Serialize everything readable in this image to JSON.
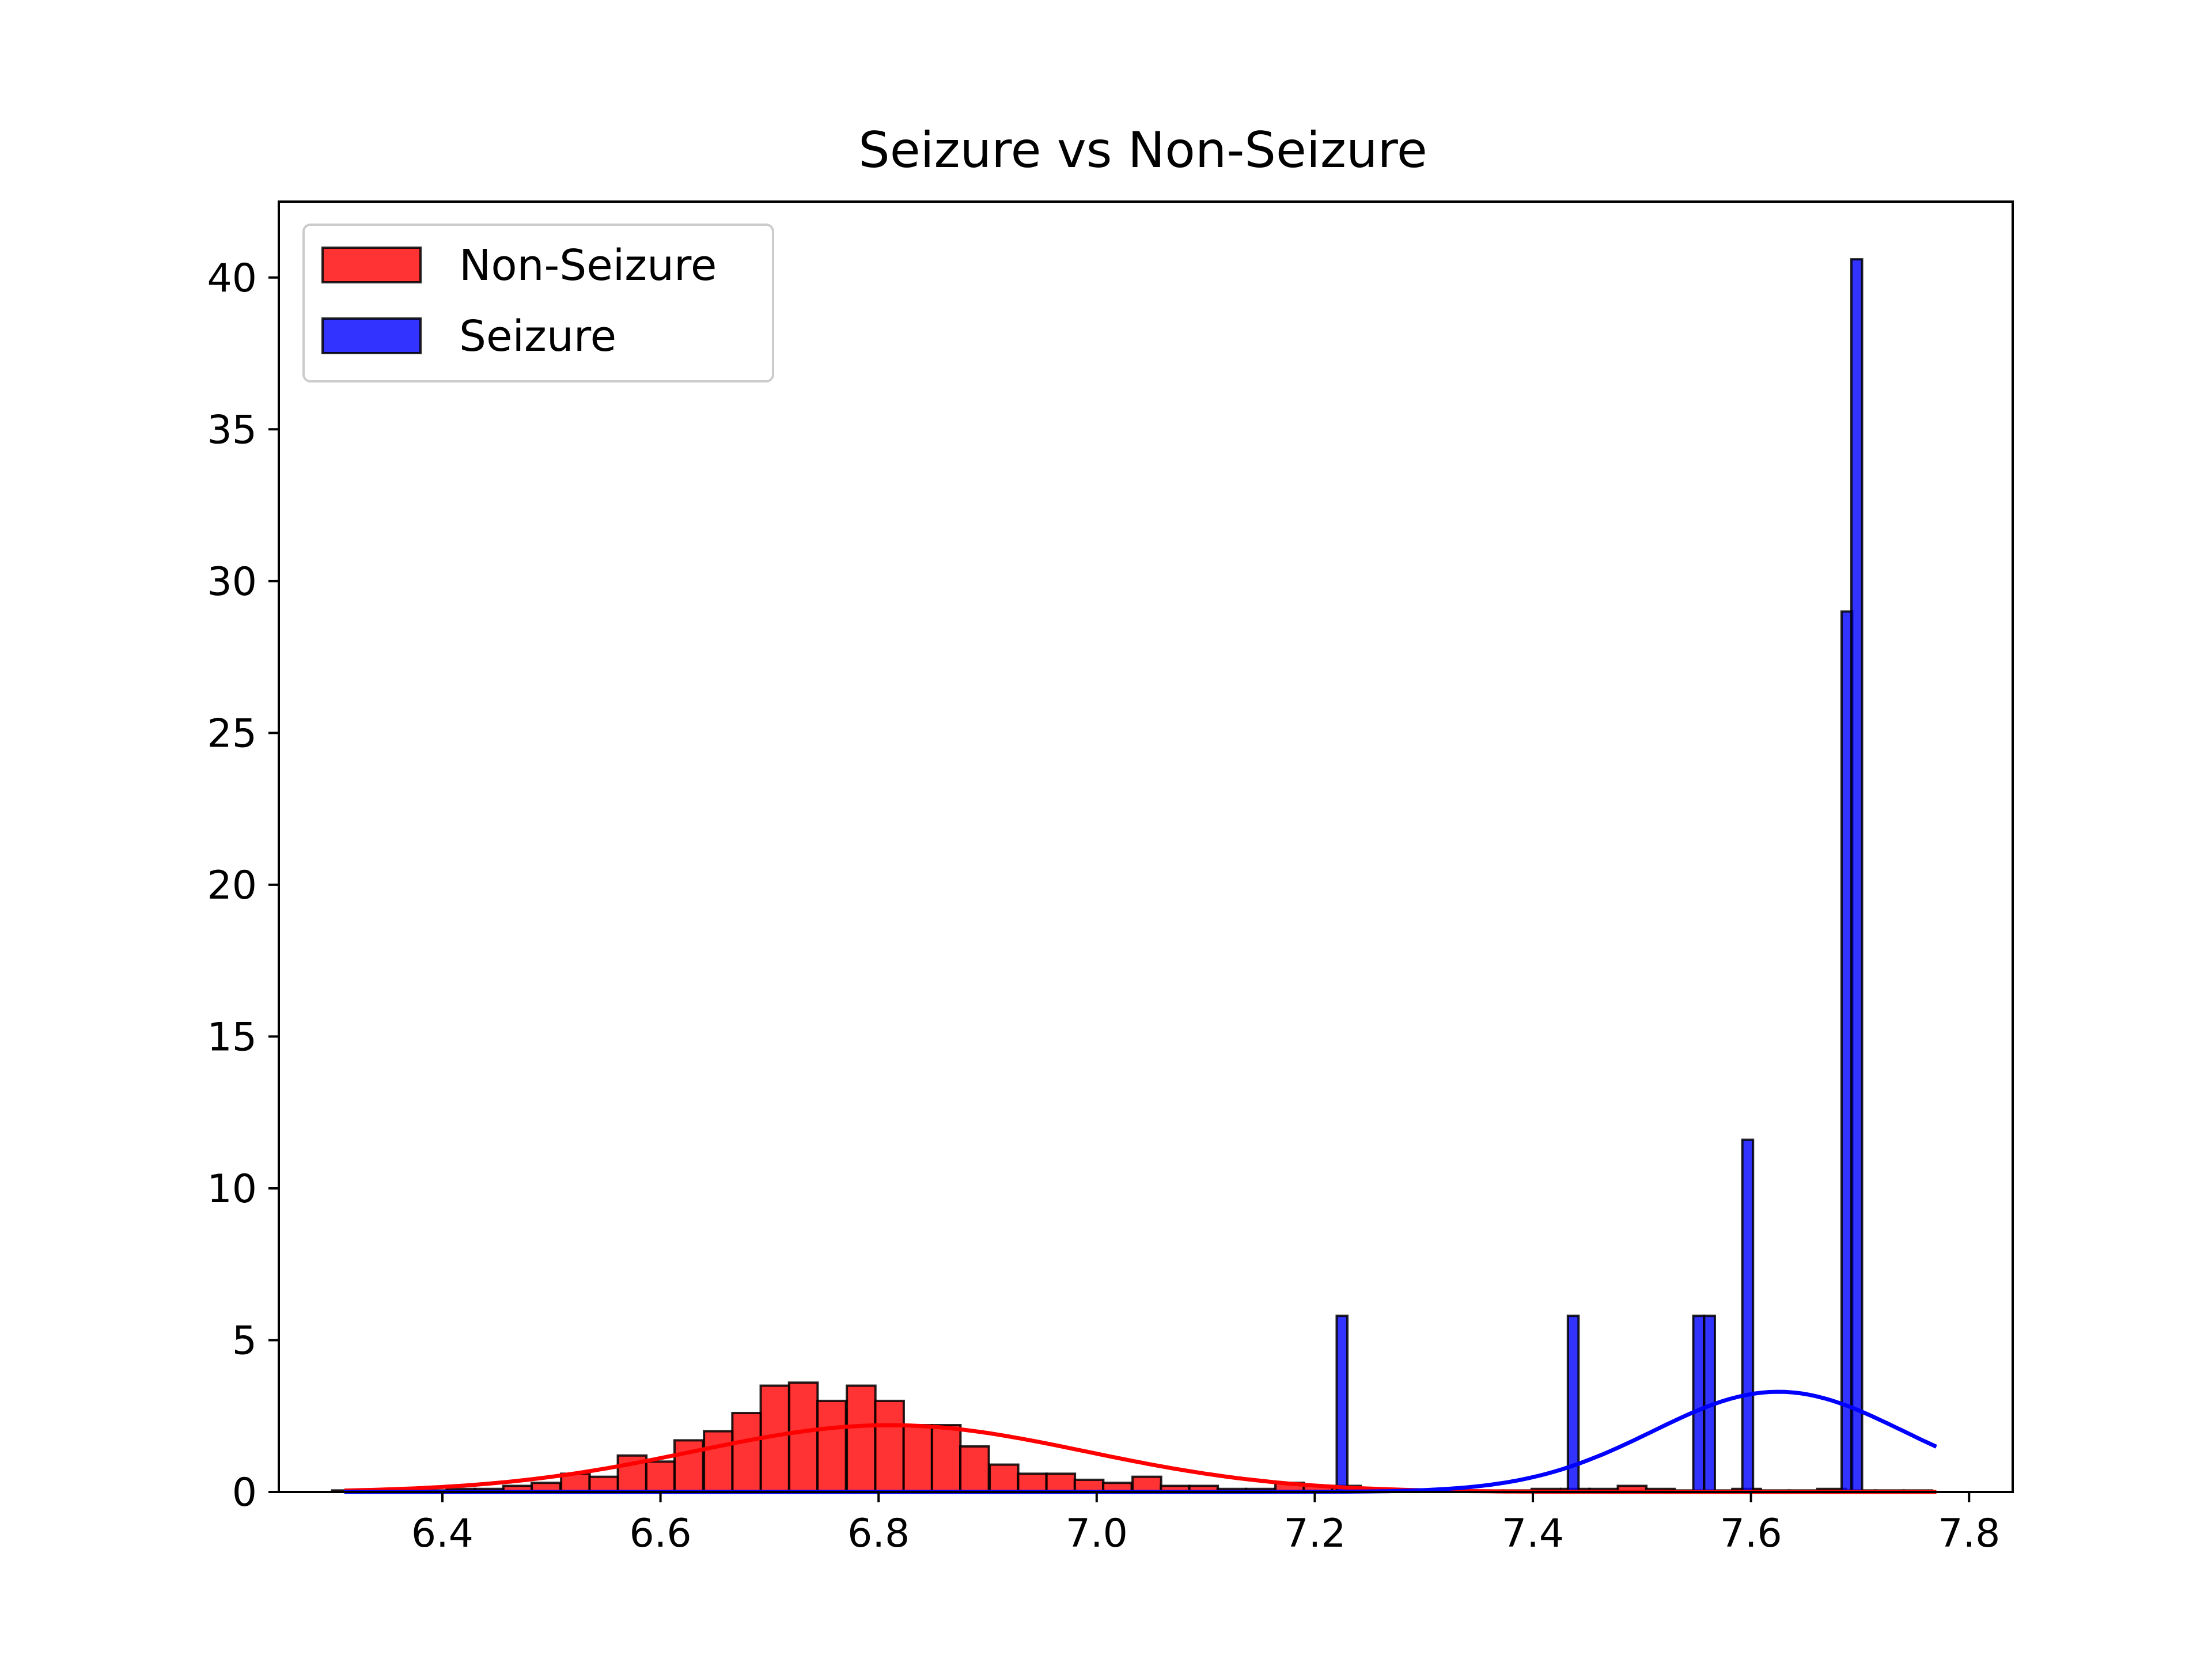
{
  "chart_data": {
    "type": "bar",
    "title": "Seizure vs Non-Seizure",
    "xlabel": "",
    "ylabel": "",
    "xlim": [
      6.25,
      7.84
    ],
    "ylim": [
      0,
      42.5
    ],
    "xticks": [
      "6.4",
      "6.6",
      "6.8",
      "7.0",
      "7.2",
      "7.4",
      "7.6",
      "7.8"
    ],
    "yticks": [
      "0",
      "5",
      "10",
      "15",
      "20",
      "25",
      "30",
      "35",
      "40"
    ],
    "grid": false,
    "legend_position": "top-left",
    "series": [
      {
        "name": "Non-Seizure",
        "kind": "histogram",
        "color": "#ff0000",
        "bin_width": 0.0262,
        "x": [
          6.312,
          6.338,
          6.364,
          6.391,
          6.417,
          6.443,
          6.469,
          6.495,
          6.522,
          6.548,
          6.574,
          6.6,
          6.626,
          6.653,
          6.679,
          6.705,
          6.731,
          6.757,
          6.784,
          6.81,
          6.836,
          6.862,
          6.888,
          6.915,
          6.941,
          6.967,
          6.993,
          7.019,
          7.046,
          7.072,
          7.098,
          7.124,
          7.15,
          7.177,
          7.203,
          7.229,
          7.255,
          7.281,
          7.308,
          7.334,
          7.36,
          7.386,
          7.412,
          7.439,
          7.465,
          7.491,
          7.517,
          7.543,
          7.57,
          7.596,
          7.622,
          7.648,
          7.674,
          7.701,
          7.727,
          7.753
        ],
        "values": [
          0.05,
          0.05,
          0.05,
          0.05,
          0.1,
          0.1,
          0.2,
          0.3,
          0.6,
          0.5,
          1.2,
          1.0,
          1.7,
          2.0,
          2.6,
          3.5,
          3.6,
          3.0,
          3.5,
          3.0,
          2.2,
          2.2,
          1.5,
          0.9,
          0.6,
          0.6,
          0.4,
          0.3,
          0.5,
          0.2,
          0.2,
          0.1,
          0.1,
          0.3,
          0.2,
          0.2,
          0.05,
          0.05,
          0.05,
          0.05,
          0.05,
          0.05,
          0.1,
          0.1,
          0.1,
          0.2,
          0.1,
          0.05,
          0.05,
          0.1,
          0.05,
          0.05,
          0.1,
          0.05,
          0.05,
          0.05
        ]
      },
      {
        "name": "Seizure",
        "kind": "histogram",
        "color": "#0000ff",
        "bin_width": 0.0098,
        "x": [
          7.225,
          7.437,
          7.552,
          7.562,
          7.597,
          7.688,
          7.697
        ],
        "values": [
          5.8,
          5.8,
          5.8,
          5.8,
          11.6,
          29.0,
          40.6
        ]
      }
    ],
    "fit_curves": [
      {
        "color": "#ff0000",
        "mean": 6.81,
        "sd": 0.18,
        "peak": 2.2,
        "x_range": [
          6.31,
          7.77
        ]
      },
      {
        "color": "#0000ff",
        "mean": 7.625,
        "sd": 0.115,
        "peak": 3.3,
        "x_range": [
          6.31,
          7.77
        ]
      }
    ]
  }
}
